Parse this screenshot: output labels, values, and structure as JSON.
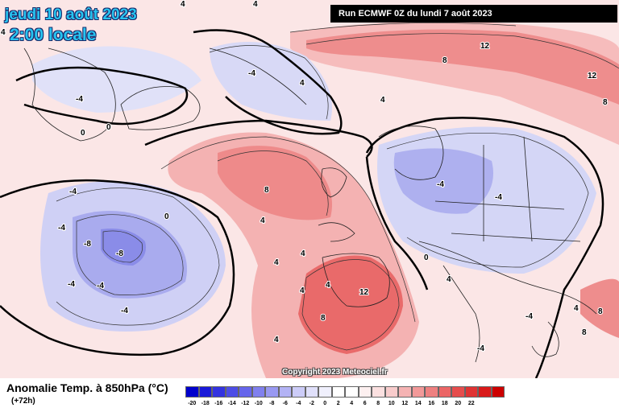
{
  "date_line1": "jeudi 10 août 2023",
  "date_line2": "2:00 locale",
  "run_info": "Run ECMWF 0Z du lundi 7 août 2023",
  "copyright": "Copyright 2023 Meteociel.fr",
  "legend_title": "Anomalie Temp. à 850hPa (°C)",
  "legend_subtitle": "(+72h)",
  "scale_colors": [
    "#0000cc",
    "#1a1ad9",
    "#3333e0",
    "#4d4de6",
    "#6666eb",
    "#8080ee",
    "#9999f2",
    "#b3b3f5",
    "#ccccf8",
    "#e0e0fb",
    "#f0f0fd",
    "#ffffff",
    "#ffffff",
    "#fdf0f0",
    "#fbe0e0",
    "#f8cccc",
    "#f5b3b3",
    "#f29999",
    "#ee8080",
    "#eb6666",
    "#e64d4d",
    "#e03333",
    "#d91a1a",
    "#cc0000"
  ],
  "scale_ticks": [
    "-20",
    "-18",
    "-16",
    "-14",
    "-12",
    "-10",
    "-8",
    "-6",
    "-4",
    "-2",
    "0",
    "2",
    "4",
    "6",
    "8",
    "10",
    "12",
    "14",
    "16",
    "18",
    "20",
    "22"
  ],
  "contour_labels": [
    "4",
    "4",
    "4",
    "-4",
    "-4",
    "0",
    "4",
    "0",
    "12",
    "8",
    "12",
    "8",
    "4",
    "-4",
    "-8",
    "-8",
    "-4",
    "-4",
    "-4",
    "-4",
    "0",
    "8",
    "4",
    "4",
    "4",
    "4",
    "4",
    "12",
    "8",
    "4",
    "0",
    "-4",
    "-4",
    "4",
    "8",
    "8",
    "4",
    "-4",
    "-4"
  ]
}
